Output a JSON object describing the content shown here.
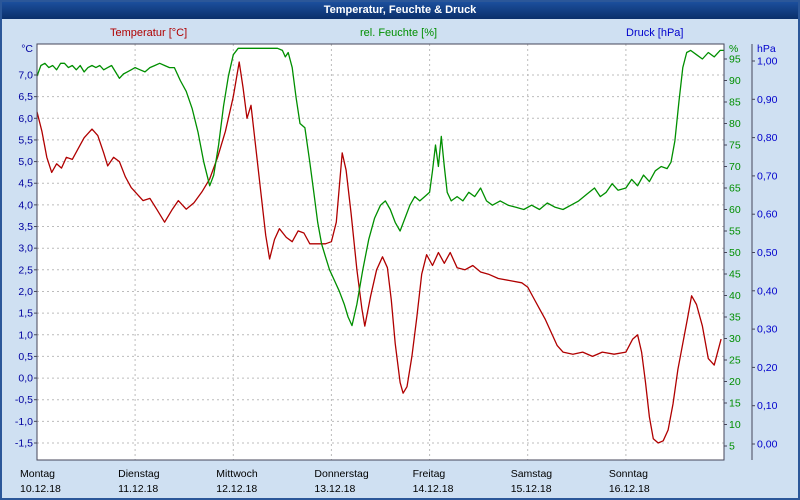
{
  "window": {
    "title": "Temperatur, Feuchte & Druck"
  },
  "legend": [
    {
      "label": "Temperatur [°C]",
      "color": "#b00000"
    },
    {
      "label": "rel. Feuchte [%]",
      "color": "#008f00"
    },
    {
      "label": "Druck [hPa]",
      "color": "#0000cc"
    }
  ],
  "chart_data": {
    "type": "line",
    "title": "Temperatur, Feuchte & Druck",
    "grid": true,
    "x_range_days": [
      0,
      7
    ],
    "x_axis": {
      "days": [
        {
          "name": "Montag",
          "date": "10.12.18"
        },
        {
          "name": "Dienstag",
          "date": "11.12.18"
        },
        {
          "name": "Mittwoch",
          "date": "12.12.18"
        },
        {
          "name": "Donnerstag",
          "date": "13.12.18"
        },
        {
          "name": "Freitag",
          "date": "14.12.18"
        },
        {
          "name": "Samstag",
          "date": "15.12.18"
        },
        {
          "name": "Sonntag",
          "date": "16.12.18"
        }
      ]
    },
    "axes": {
      "temperature": {
        "unit": "°C",
        "color": "#0000a0",
        "side": "left",
        "tick_labels": [
          "7,0",
          "6,5",
          "6,0",
          "5,5",
          "5,0",
          "4,5",
          "4,0",
          "3,5",
          "3,0",
          "2,5",
          "2,0",
          "1,5",
          "1,0",
          "0,5",
          "0,0",
          "-0,5",
          "-1,0",
          "-1,5"
        ]
      },
      "humidity": {
        "unit": "%",
        "color": "#008f00",
        "side": "right-inner",
        "tick_labels": [
          "95",
          "90",
          "85",
          "80",
          "75",
          "70",
          "65",
          "60",
          "55",
          "50",
          "45",
          "40",
          "35",
          "30",
          "25",
          "20",
          "15",
          "10",
          "5"
        ]
      },
      "pressure": {
        "unit": "hPa",
        "color": "#0000cc",
        "side": "right-outer",
        "tick_labels": [
          "1,00",
          "0,90",
          "0,80",
          "0,70",
          "0,60",
          "0,50",
          "0,40",
          "0,30",
          "0,20",
          "0,10",
          "0,00"
        ]
      }
    },
    "series": [
      {
        "id": "temperature",
        "name": "Temperatur",
        "unit": "°C",
        "scale": "temperature",
        "color": "#b00000",
        "points": [
          [
            0.0,
            6.15
          ],
          [
            0.05,
            5.7
          ],
          [
            0.1,
            5.1
          ],
          [
            0.15,
            4.75
          ],
          [
            0.2,
            4.95
          ],
          [
            0.25,
            4.85
          ],
          [
            0.3,
            5.1
          ],
          [
            0.36,
            5.05
          ],
          [
            0.42,
            5.3
          ],
          [
            0.48,
            5.55
          ],
          [
            0.56,
            5.75
          ],
          [
            0.62,
            5.6
          ],
          [
            0.68,
            5.2
          ],
          [
            0.72,
            4.9
          ],
          [
            0.78,
            5.1
          ],
          [
            0.84,
            5.0
          ],
          [
            0.9,
            4.65
          ],
          [
            0.96,
            4.4
          ],
          [
            1.02,
            4.25
          ],
          [
            1.08,
            4.1
          ],
          [
            1.15,
            4.15
          ],
          [
            1.22,
            3.9
          ],
          [
            1.3,
            3.6
          ],
          [
            1.38,
            3.9
          ],
          [
            1.44,
            4.1
          ],
          [
            1.52,
            3.9
          ],
          [
            1.6,
            4.05
          ],
          [
            1.68,
            4.3
          ],
          [
            1.76,
            4.6
          ],
          [
            1.84,
            5.1
          ],
          [
            1.92,
            5.7
          ],
          [
            2.0,
            6.5
          ],
          [
            2.06,
            7.3
          ],
          [
            2.1,
            6.7
          ],
          [
            2.14,
            6.0
          ],
          [
            2.18,
            6.3
          ],
          [
            2.23,
            5.3
          ],
          [
            2.28,
            4.3
          ],
          [
            2.33,
            3.3
          ],
          [
            2.37,
            2.75
          ],
          [
            2.42,
            3.2
          ],
          [
            2.47,
            3.45
          ],
          [
            2.54,
            3.25
          ],
          [
            2.6,
            3.15
          ],
          [
            2.66,
            3.4
          ],
          [
            2.72,
            3.35
          ],
          [
            2.78,
            3.1
          ],
          [
            2.86,
            3.1
          ],
          [
            2.94,
            3.1
          ],
          [
            3.0,
            3.15
          ],
          [
            3.05,
            3.6
          ],
          [
            3.11,
            5.2
          ],
          [
            3.15,
            4.8
          ],
          [
            3.2,
            3.8
          ],
          [
            3.26,
            2.5
          ],
          [
            3.31,
            1.6
          ],
          [
            3.34,
            1.2
          ],
          [
            3.4,
            1.9
          ],
          [
            3.46,
            2.5
          ],
          [
            3.52,
            2.8
          ],
          [
            3.57,
            2.55
          ],
          [
            3.61,
            1.8
          ],
          [
            3.65,
            0.8
          ],
          [
            3.7,
            -0.1
          ],
          [
            3.73,
            -0.35
          ],
          [
            3.77,
            -0.2
          ],
          [
            3.82,
            0.5
          ],
          [
            3.87,
            1.4
          ],
          [
            3.92,
            2.4
          ],
          [
            3.97,
            2.85
          ],
          [
            4.03,
            2.6
          ],
          [
            4.09,
            2.9
          ],
          [
            4.15,
            2.65
          ],
          [
            4.21,
            2.9
          ],
          [
            4.28,
            2.55
          ],
          [
            4.36,
            2.5
          ],
          [
            4.44,
            2.6
          ],
          [
            4.52,
            2.45
          ],
          [
            4.6,
            2.4
          ],
          [
            4.7,
            2.3
          ],
          [
            4.82,
            2.25
          ],
          [
            4.94,
            2.2
          ],
          [
            5.0,
            2.1
          ],
          [
            5.06,
            1.85
          ],
          [
            5.12,
            1.6
          ],
          [
            5.18,
            1.35
          ],
          [
            5.24,
            1.05
          ],
          [
            5.3,
            0.75
          ],
          [
            5.36,
            0.6
          ],
          [
            5.46,
            0.55
          ],
          [
            5.56,
            0.6
          ],
          [
            5.66,
            0.5
          ],
          [
            5.76,
            0.6
          ],
          [
            5.88,
            0.55
          ],
          [
            6.0,
            0.6
          ],
          [
            6.07,
            0.9
          ],
          [
            6.12,
            1.0
          ],
          [
            6.16,
            0.6
          ],
          [
            6.2,
            -0.1
          ],
          [
            6.24,
            -0.9
          ],
          [
            6.28,
            -1.4
          ],
          [
            6.33,
            -1.5
          ],
          [
            6.38,
            -1.45
          ],
          [
            6.43,
            -1.2
          ],
          [
            6.48,
            -0.6
          ],
          [
            6.53,
            0.2
          ],
          [
            6.58,
            0.8
          ],
          [
            6.63,
            1.4
          ],
          [
            6.67,
            1.9
          ],
          [
            6.72,
            1.7
          ],
          [
            6.78,
            1.2
          ],
          [
            6.84,
            0.45
          ],
          [
            6.9,
            0.3
          ],
          [
            6.97,
            0.9
          ]
        ]
      },
      {
        "id": "humidity",
        "name": "rel. Feuchte",
        "unit": "%",
        "scale": "humidity",
        "color": "#008f00",
        "points": [
          [
            0.0,
            91
          ],
          [
            0.04,
            93.5
          ],
          [
            0.08,
            94
          ],
          [
            0.12,
            93
          ],
          [
            0.16,
            93.5
          ],
          [
            0.2,
            92.5
          ],
          [
            0.24,
            94
          ],
          [
            0.28,
            94
          ],
          [
            0.32,
            93
          ],
          [
            0.36,
            93.5
          ],
          [
            0.4,
            92.5
          ],
          [
            0.44,
            93.5
          ],
          [
            0.48,
            92
          ],
          [
            0.52,
            93
          ],
          [
            0.56,
            93.5
          ],
          [
            0.6,
            93
          ],
          [
            0.64,
            93.5
          ],
          [
            0.68,
            92.5
          ],
          [
            0.72,
            93
          ],
          [
            0.76,
            93.5
          ],
          [
            0.8,
            92
          ],
          [
            0.84,
            90.5
          ],
          [
            0.88,
            91.5
          ],
          [
            0.92,
            92
          ],
          [
            0.96,
            92.5
          ],
          [
            1.0,
            93
          ],
          [
            1.05,
            92.5
          ],
          [
            1.1,
            92
          ],
          [
            1.15,
            93
          ],
          [
            1.2,
            93.5
          ],
          [
            1.25,
            94
          ],
          [
            1.3,
            93.5
          ],
          [
            1.35,
            93
          ],
          [
            1.4,
            93
          ],
          [
            1.46,
            90
          ],
          [
            1.52,
            87.5
          ],
          [
            1.58,
            83.5
          ],
          [
            1.64,
            78
          ],
          [
            1.7,
            71
          ],
          [
            1.76,
            65.5
          ],
          [
            1.8,
            68
          ],
          [
            1.85,
            75
          ],
          [
            1.9,
            84
          ],
          [
            1.95,
            91
          ],
          [
            2.0,
            96
          ],
          [
            2.05,
            97.5
          ],
          [
            2.15,
            97.5
          ],
          [
            2.25,
            97.5
          ],
          [
            2.35,
            97.5
          ],
          [
            2.45,
            97.5
          ],
          [
            2.5,
            97
          ],
          [
            2.53,
            95.5
          ],
          [
            2.56,
            96.5
          ],
          [
            2.6,
            93
          ],
          [
            2.64,
            86
          ],
          [
            2.68,
            80
          ],
          [
            2.73,
            79
          ],
          [
            2.78,
            71
          ],
          [
            2.82,
            64
          ],
          [
            2.86,
            57
          ],
          [
            2.9,
            52
          ],
          [
            2.94,
            49
          ],
          [
            2.98,
            46
          ],
          [
            3.03,
            43.5
          ],
          [
            3.08,
            41
          ],
          [
            3.13,
            38
          ],
          [
            3.17,
            35
          ],
          [
            3.21,
            33
          ],
          [
            3.26,
            38
          ],
          [
            3.32,
            46
          ],
          [
            3.38,
            53
          ],
          [
            3.44,
            58
          ],
          [
            3.5,
            61
          ],
          [
            3.55,
            62
          ],
          [
            3.6,
            60
          ],
          [
            3.65,
            57
          ],
          [
            3.7,
            55
          ],
          [
            3.75,
            58
          ],
          [
            3.8,
            61
          ],
          [
            3.85,
            63
          ],
          [
            3.9,
            62
          ],
          [
            3.95,
            63
          ],
          [
            4.0,
            64
          ],
          [
            4.03,
            69
          ],
          [
            4.06,
            75
          ],
          [
            4.09,
            70
          ],
          [
            4.12,
            77
          ],
          [
            4.15,
            70
          ],
          [
            4.18,
            64
          ],
          [
            4.22,
            62
          ],
          [
            4.28,
            63
          ],
          [
            4.34,
            62
          ],
          [
            4.4,
            64
          ],
          [
            4.46,
            63
          ],
          [
            4.52,
            65
          ],
          [
            4.58,
            62
          ],
          [
            4.64,
            61
          ],
          [
            4.72,
            62
          ],
          [
            4.8,
            61
          ],
          [
            4.88,
            60.5
          ],
          [
            4.96,
            60
          ],
          [
            5.04,
            61
          ],
          [
            5.12,
            60
          ],
          [
            5.2,
            61.5
          ],
          [
            5.28,
            60.5
          ],
          [
            5.36,
            60
          ],
          [
            5.44,
            61
          ],
          [
            5.52,
            62
          ],
          [
            5.6,
            63.5
          ],
          [
            5.68,
            65
          ],
          [
            5.74,
            63
          ],
          [
            5.8,
            64
          ],
          [
            5.86,
            66
          ],
          [
            5.92,
            64.5
          ],
          [
            6.0,
            65
          ],
          [
            6.06,
            67
          ],
          [
            6.12,
            65.5
          ],
          [
            6.18,
            68
          ],
          [
            6.24,
            66.5
          ],
          [
            6.3,
            69
          ],
          [
            6.36,
            70
          ],
          [
            6.42,
            69.5
          ],
          [
            6.46,
            71
          ],
          [
            6.5,
            76
          ],
          [
            6.54,
            85
          ],
          [
            6.58,
            93
          ],
          [
            6.62,
            96.5
          ],
          [
            6.66,
            97
          ],
          [
            6.72,
            96
          ],
          [
            6.78,
            95
          ],
          [
            6.84,
            96.5
          ],
          [
            6.9,
            95.5
          ],
          [
            6.96,
            97
          ],
          [
            7.0,
            97
          ]
        ]
      },
      {
        "id": "pressure",
        "name": "Druck",
        "unit": "hPa",
        "scale": "pressure",
        "color": "#0000cc",
        "points": []
      }
    ]
  }
}
